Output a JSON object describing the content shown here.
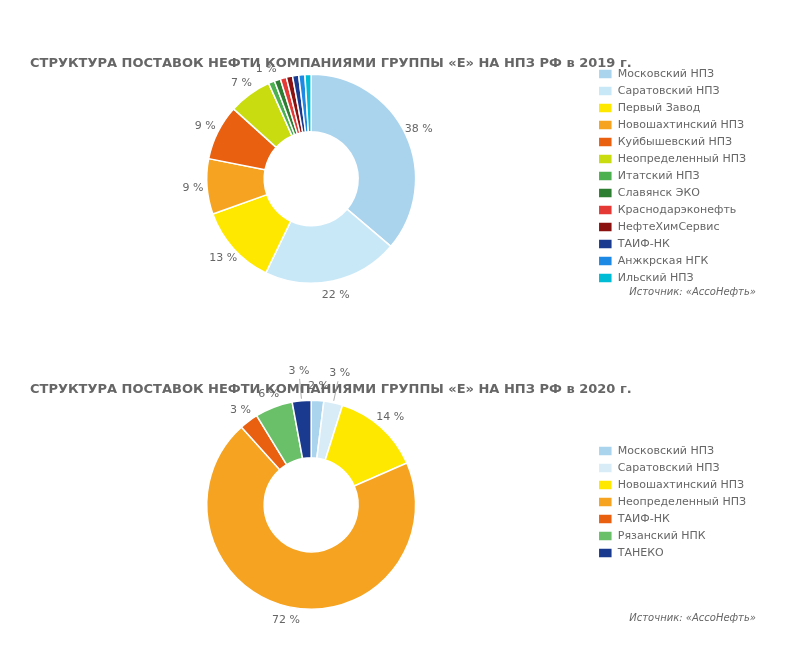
{
  "chart_data": [
    {
      "type": "doughnut",
      "title": "СТРУКТУРА ПОСТАВОК НЕФТИ КОМПАНИЯМИ ГРУППЫ «Е» НА НПЗ РФ в 2019 г.",
      "categories": [
        "Московский НПЗ",
        "Саратовский НПЗ",
        "Первый Завод",
        "Новошахтинский НПЗ",
        "Куйбышевский НПЗ",
        "Неопределенный НПЗ",
        "Итатский НПЗ",
        "Славянск ЭКО",
        "Краснодарэконефть",
        "НефтеХимСервис",
        "ТАИФ-НК",
        "Анжкрская НГК",
        "Ильский НПЗ"
      ],
      "values": [
        38,
        22,
        13,
        9,
        9,
        7,
        1,
        1,
        1,
        1,
        1,
        1,
        1
      ],
      "value_labels": [
        "38 %",
        "22 %",
        "13 %",
        "9 %",
        "9 %",
        "7 %",
        "1 %",
        null,
        null,
        null,
        null,
        null,
        null
      ],
      "colors": [
        "#aad4ee",
        "#c8e8f8",
        "#ffe800",
        "#f5a320",
        "#e86010",
        "#c8dc10",
        "#4caf50",
        "#2d7d32",
        "#e53935",
        "#8b1010",
        "#1a3a8f",
        "#1e88e5",
        "#00bcd4"
      ],
      "data_labels": true,
      "legend": "right",
      "annotation": "Источник: «АссоНефть»"
    },
    {
      "type": "doughnut",
      "title": "СТРУКТУРА ПОСТАВОК НЕФТИ КОМПАНИЯМИ ГРУППЫ «Е» НА НПЗ РФ в 2020 г.",
      "categories": [
        "Московский НПЗ",
        "Саратовский НПЗ",
        "Новошахтинский НПЗ",
        "Неопределенный НПЗ",
        "ТАИФ-НК",
        "Рязанский НПК",
        "ТАНЕКО"
      ],
      "values": [
        2,
        3,
        14,
        72,
        3,
        6,
        3
      ],
      "value_labels": [
        "2 %",
        "3 %",
        "14 %",
        "72 %",
        "3 %",
        "6 %",
        "3 %"
      ],
      "colors": [
        "#aad4ee",
        "#d8ecf8",
        "#ffe800",
        "#f5a320",
        "#e86010",
        "#6abf69",
        "#1a3a8f"
      ],
      "data_labels": true,
      "legend": "right",
      "annotation": "Источник: «АссоНефть»"
    }
  ]
}
